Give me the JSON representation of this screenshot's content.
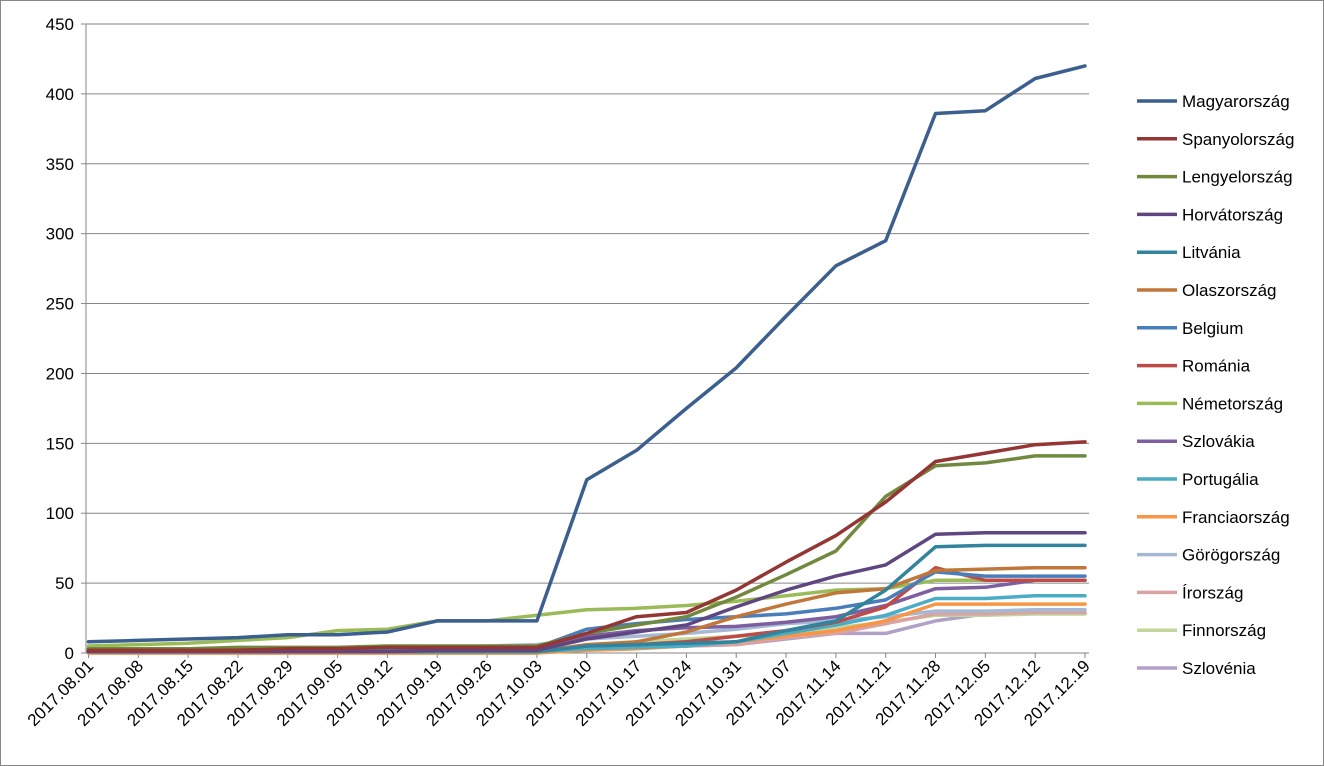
{
  "chart_data": {
    "type": "line",
    "title": "",
    "xlabel": "",
    "ylabel": "",
    "ylim": [
      0,
      450
    ],
    "yticks": [
      0,
      50,
      100,
      150,
      200,
      250,
      300,
      350,
      400,
      450
    ],
    "grid": "horizontal",
    "legend_position": "right",
    "categories": [
      "2017.08.01",
      "2017.08.08",
      "2017.08.15",
      "2017.08.22",
      "2017.08.29",
      "2017.09.05",
      "2017.09.12",
      "2017.09.19",
      "2017.09.26",
      "2017.10.03",
      "2017.10.10",
      "2017.10.17",
      "2017.10.24",
      "2017.10.31",
      "2017.11.07",
      "2017.11.14",
      "2017.11.21",
      "2017.11.28",
      "2017.12.05",
      "2017.12.12",
      "2017.12.19"
    ],
    "series": [
      {
        "name": "Magyarország",
        "color": "#3b5f8e",
        "values": [
          8,
          9,
          10,
          11,
          13,
          13,
          15,
          23,
          23,
          23,
          124,
          145,
          175,
          204,
          241,
          277,
          295,
          386,
          388,
          411,
          420
        ]
      },
      {
        "name": "Spanyolország",
        "color": "#943634",
        "values": [
          2,
          2,
          2,
          2,
          3,
          3,
          4,
          4,
          4,
          4,
          14,
          26,
          29,
          45,
          65,
          84,
          108,
          137,
          143,
          149,
          151
        ]
      },
      {
        "name": "Lengyelország",
        "color": "#71893f",
        "values": [
          3,
          3,
          3,
          4,
          4,
          4,
          5,
          5,
          5,
          5,
          14,
          20,
          26,
          40,
          56,
          73,
          112,
          134,
          136,
          141,
          141
        ]
      },
      {
        "name": "Horvátország",
        "color": "#5f4680",
        "values": [
          1,
          1,
          1,
          1,
          1,
          1,
          1,
          2,
          2,
          2,
          10,
          15,
          20,
          33,
          45,
          55,
          63,
          85,
          86,
          86,
          86
        ]
      },
      {
        "name": "Litvánia",
        "color": "#31849b",
        "values": [
          1,
          1,
          1,
          1,
          1,
          1,
          1,
          1,
          1,
          1,
          5,
          6,
          7,
          8,
          16,
          23,
          45,
          76,
          77,
          77,
          77
        ]
      },
      {
        "name": "Olaszország",
        "color": "#c0773c",
        "values": [
          1,
          1,
          1,
          1,
          1,
          1,
          1,
          1,
          1,
          1,
          6,
          8,
          15,
          26,
          35,
          43,
          46,
          59,
          60,
          61,
          61
        ]
      },
      {
        "name": "Belgium",
        "color": "#4a7ebb",
        "values": [
          3,
          3,
          3,
          3,
          3,
          3,
          3,
          4,
          4,
          4,
          17,
          21,
          24,
          26,
          28,
          32,
          38,
          58,
          55,
          55,
          55
        ]
      },
      {
        "name": "Románia",
        "color": "#be4b48",
        "values": [
          1,
          1,
          1,
          1,
          1,
          1,
          1,
          1,
          1,
          1,
          5,
          6,
          8,
          12,
          16,
          22,
          33,
          61,
          52,
          52,
          52
        ]
      },
      {
        "name": "Németország",
        "color": "#9bbb59",
        "values": [
          5,
          6,
          7,
          9,
          11,
          16,
          17,
          23,
          23,
          27,
          31,
          32,
          34,
          37,
          41,
          45,
          46,
          52,
          52,
          52,
          52
        ]
      },
      {
        "name": "Szlovákia",
        "color": "#7d5fa0",
        "values": [
          1,
          1,
          1,
          1,
          1,
          1,
          2,
          3,
          3,
          3,
          12,
          16,
          18,
          19,
          22,
          26,
          34,
          46,
          47,
          52,
          52
        ]
      },
      {
        "name": "Portugália",
        "color": "#4bacc6",
        "values": [
          1,
          1,
          1,
          1,
          1,
          1,
          1,
          1,
          1,
          1,
          3,
          4,
          5,
          8,
          14,
          20,
          27,
          39,
          39,
          41,
          41
        ]
      },
      {
        "name": "Franciaország",
        "color": "#f79646",
        "values": [
          0,
          0,
          0,
          0,
          0,
          0,
          0,
          0,
          0,
          0,
          2,
          3,
          5,
          8,
          12,
          16,
          23,
          35,
          35,
          35,
          35
        ]
      },
      {
        "name": "Görögország",
        "color": "#a5b9d5",
        "values": [
          2,
          2,
          2,
          2,
          2,
          2,
          3,
          4,
          5,
          6,
          10,
          12,
          14,
          17,
          21,
          23,
          26,
          30,
          30,
          31,
          31
        ]
      },
      {
        "name": "Írország",
        "color": "#d9a3a2",
        "values": [
          0,
          0,
          0,
          0,
          0,
          0,
          0,
          0,
          0,
          0,
          3,
          4,
          5,
          6,
          11,
          14,
          21,
          28,
          28,
          29,
          29
        ]
      },
      {
        "name": "Finnország",
        "color": "#c2d69a",
        "values": [
          1,
          1,
          1,
          1,
          1,
          1,
          1,
          1,
          1,
          1,
          5,
          8,
          10,
          12,
          14,
          18,
          22,
          27,
          27,
          28,
          28
        ]
      },
      {
        "name": "Szlovénia",
        "color": "#b1a0c7",
        "values": [
          0,
          0,
          0,
          0,
          0,
          0,
          0,
          0,
          0,
          0,
          3,
          4,
          5,
          6,
          10,
          14,
          14,
          23,
          28,
          28,
          28
        ]
      }
    ]
  }
}
